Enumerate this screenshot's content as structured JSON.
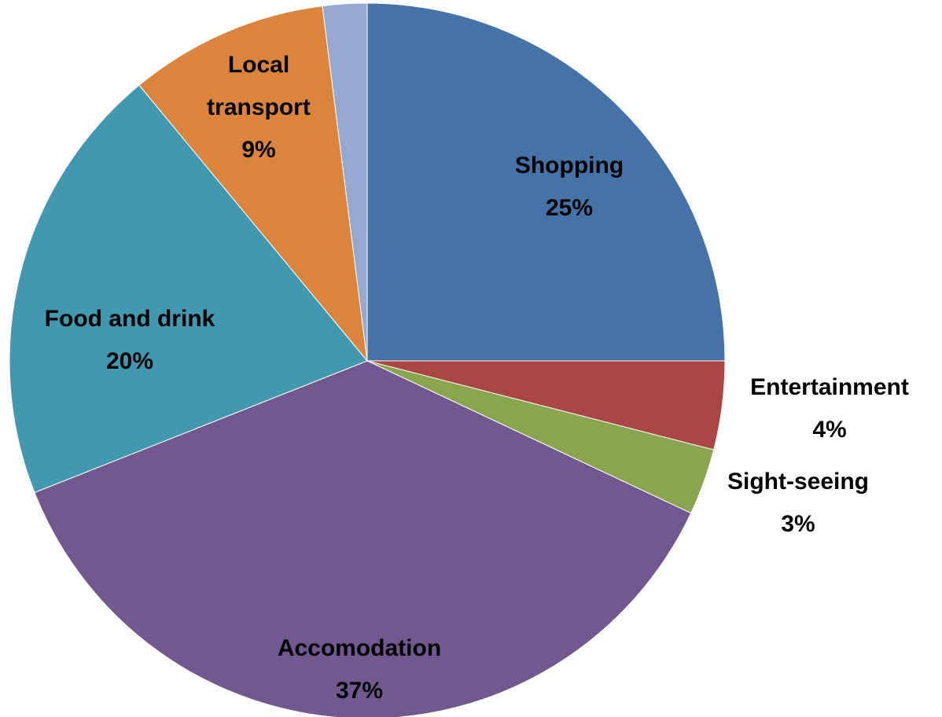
{
  "chart_data": {
    "type": "pie",
    "categories": [
      "Shopping",
      "Entertainment",
      "Sight-seeing",
      "Accomodation",
      "Food and drink",
      "Local transport",
      null
    ],
    "values": [
      25,
      4,
      3,
      37,
      20,
      9,
      2
    ],
    "value_labels": [
      "25%",
      "4%",
      "3%",
      "37%",
      "20%",
      "9%",
      null
    ],
    "colors": [
      "#4572a7",
      "#aa4643",
      "#89a54e",
      "#71588f",
      "#4198af",
      "#db843d",
      "#93a9cf"
    ]
  }
}
